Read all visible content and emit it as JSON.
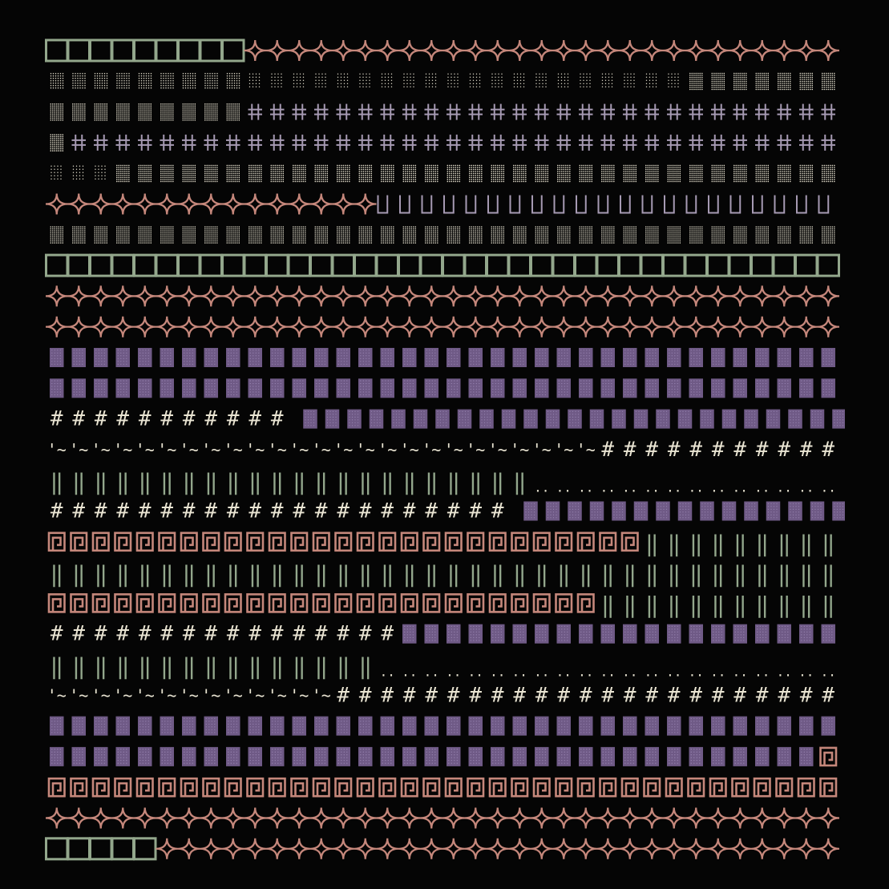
{
  "palette": {
    "background": "#050505",
    "green": "#93a78c",
    "rose": "#c5877b",
    "purple": "#6f5a86",
    "purple_dot": "#9a86b3",
    "cream": "#e9e4d2",
    "mauve": "#a69ab3"
  },
  "text": {
    "hash": "#",
    "dbl_bar": "‖",
    "quote_tilde": "'~",
    "dots": ".."
  },
  "rows": [
    {
      "segments": [
        {
          "pattern": "green-box",
          "count": 9
        },
        {
          "pattern": "rose-star",
          "count": 27
        }
      ]
    },
    {
      "segments": [
        {
          "pattern": "cream-dense",
          "count": 9
        },
        {
          "pattern": "cream-sparse",
          "count": 20
        },
        {
          "pattern": "cream-solid",
          "count": 7
        }
      ]
    },
    {
      "segments": [
        {
          "pattern": "cream-solid",
          "count": 9
        },
        {
          "pattern": "mauve-cross",
          "count": 27
        }
      ]
    },
    {
      "segments": [
        {
          "pattern": "cream-solid",
          "count": 1
        },
        {
          "pattern": "mauve-cross",
          "count": 35
        }
      ]
    },
    {
      "segments": [
        {
          "pattern": "cream-sparse",
          "count": 3
        },
        {
          "pattern": "cream-solid",
          "count": 33
        }
      ]
    },
    {
      "segments": [
        {
          "pattern": "rose-star",
          "count": 15
        },
        {
          "pattern": "mauve-bar",
          "count": 21
        }
      ]
    },
    {
      "segments": [
        {
          "pattern": "cream-solid",
          "count": 36
        }
      ]
    },
    {
      "segments": [
        {
          "pattern": "green-box",
          "count": 36
        }
      ]
    },
    {
      "segments": [
        {
          "pattern": "rose-star",
          "count": 36
        }
      ]
    },
    {
      "segments": [
        {
          "pattern": "rose-star",
          "count": 36
        }
      ]
    },
    {
      "segments": [
        {
          "pattern": "purple-block",
          "count": 36
        }
      ]
    },
    {
      "segments": [
        {
          "pattern": "purple-block",
          "count": 36
        }
      ]
    },
    {
      "segments": [
        {
          "pattern": "hash",
          "count": 11
        },
        {
          "pattern": "blank",
          "count": 0.5
        },
        {
          "pattern": "purple-block",
          "count": 25
        }
      ]
    },
    {
      "segments": [
        {
          "pattern": "quote-tilde",
          "count": 25
        },
        {
          "pattern": "hash",
          "count": 11
        }
      ]
    },
    {
      "segments": [
        {
          "pattern": "green-bars",
          "count": 22
        },
        {
          "pattern": "dots",
          "count": 14
        }
      ]
    },
    {
      "segments": [
        {
          "pattern": "hash",
          "count": 21
        },
        {
          "pattern": "blank",
          "count": 0.5
        },
        {
          "pattern": "purple-block",
          "count": 15
        }
      ]
    },
    {
      "segments": [
        {
          "pattern": "rose-key",
          "count": 27
        },
        {
          "pattern": "green-bars",
          "count": 9
        }
      ]
    },
    {
      "segments": [
        {
          "pattern": "green-bars",
          "count": 36
        }
      ]
    },
    {
      "segments": [
        {
          "pattern": "rose-key",
          "count": 25
        },
        {
          "pattern": "green-bars",
          "count": 11
        }
      ]
    },
    {
      "segments": [
        {
          "pattern": "hash",
          "count": 16
        },
        {
          "pattern": "purple-block",
          "count": 20
        }
      ]
    },
    {
      "segments": [
        {
          "pattern": "green-bars",
          "count": 15
        },
        {
          "pattern": "dots",
          "count": 21
        }
      ]
    },
    {
      "segments": [
        {
          "pattern": "quote-tilde",
          "count": 13
        },
        {
          "pattern": "hash",
          "count": 23
        }
      ]
    },
    {
      "segments": [
        {
          "pattern": "purple-block",
          "count": 36
        }
      ]
    },
    {
      "segments": [
        {
          "pattern": "purple-block",
          "count": 35
        },
        {
          "pattern": "rose-key",
          "count": 1
        }
      ]
    },
    {
      "segments": [
        {
          "pattern": "rose-key",
          "count": 36
        }
      ]
    },
    {
      "segments": [
        {
          "pattern": "rose-star",
          "count": 36
        }
      ]
    },
    {
      "segments": [
        {
          "pattern": "green-box",
          "count": 5
        },
        {
          "pattern": "rose-star",
          "count": 31
        }
      ]
    }
  ]
}
